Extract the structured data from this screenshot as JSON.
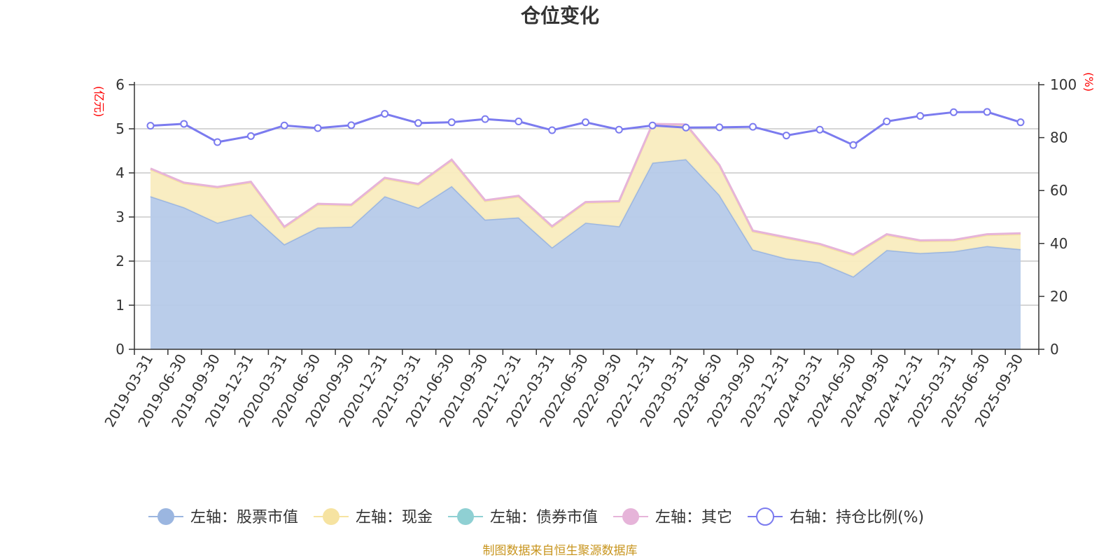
{
  "chart_data": {
    "type": "area",
    "title": "仓位变化",
    "left_axis": {
      "unit": "(亿元)",
      "ylim": [
        0,
        6
      ],
      "ticks": [
        "0",
        "1",
        "2",
        "3",
        "4",
        "5",
        "6"
      ]
    },
    "right_axis": {
      "unit": "(%)",
      "ylim": [
        0,
        100
      ],
      "ticks": [
        "0",
        "20",
        "40",
        "60",
        "80",
        "100"
      ]
    },
    "x": [
      "2019-03-31",
      "2019-06-30",
      "2019-09-30",
      "2019-12-31",
      "2020-03-31",
      "2020-06-30",
      "2020-09-30",
      "2020-12-31",
      "2021-03-31",
      "2021-06-30",
      "2021-09-30",
      "2021-12-31",
      "2022-03-31",
      "2022-06-30",
      "2022-09-30",
      "2022-12-31",
      "2023-03-31",
      "2023-06-30",
      "2023-09-30",
      "2023-12-31",
      "2024-03-31",
      "2024-06-30",
      "2024-09-30",
      "2024-12-31",
      "2025-03-31",
      "2025-06-30",
      "2025-09-30"
    ],
    "grid": true,
    "legend_position": "bottom",
    "series": [
      {
        "name": "左轴：股票市值",
        "axis": "left",
        "color": "#9bb6e0",
        "fill": "#b6cae9",
        "values": [
          3.47,
          3.22,
          2.87,
          3.06,
          2.38,
          2.76,
          2.78,
          3.47,
          3.21,
          3.7,
          2.94,
          2.99,
          2.31,
          2.87,
          2.79,
          4.23,
          4.31,
          3.5,
          2.26,
          2.06,
          1.97,
          1.65,
          2.25,
          2.18,
          2.22,
          2.34,
          2.27
        ]
      },
      {
        "name": "左轴：现金",
        "axis": "left",
        "color": "#f6e3a1",
        "fill": "#f9ecbf",
        "values": [
          0.61,
          0.54,
          0.79,
          0.72,
          0.38,
          0.52,
          0.48,
          0.4,
          0.52,
          0.58,
          0.42,
          0.47,
          0.46,
          0.45,
          0.55,
          0.86,
          0.77,
          0.66,
          0.41,
          0.46,
          0.4,
          0.48,
          0.34,
          0.27,
          0.24,
          0.25,
          0.34
        ]
      },
      {
        "name": "左轴：债券市值",
        "axis": "left",
        "color": "#8fd0d3",
        "fill": "#b9e2e4",
        "values": [
          0,
          0,
          0,
          0,
          0,
          0,
          0,
          0,
          0,
          0,
          0,
          0,
          0,
          0,
          0,
          0,
          0,
          0,
          0,
          0,
          0,
          0,
          0,
          0,
          0,
          0,
          0
        ]
      },
      {
        "name": "左轴：其它",
        "axis": "left",
        "color": "#e6b4d9",
        "fill": "#efcfe6",
        "values": [
          0.02,
          0.02,
          0.02,
          0.02,
          0.02,
          0.02,
          0.02,
          0.02,
          0.02,
          0.02,
          0.02,
          0.02,
          0.02,
          0.02,
          0.02,
          0.02,
          0.02,
          0.02,
          0.02,
          0.02,
          0.02,
          0.02,
          0.02,
          0.02,
          0.02,
          0.02,
          0.02
        ]
      },
      {
        "name": "右轴：持仓比例(%)",
        "axis": "right",
        "color": "#7b7bef",
        "values": [
          84.5,
          85.2,
          78.3,
          80.6,
          84.6,
          83.6,
          84.7,
          89.0,
          85.5,
          85.8,
          87.0,
          86.1,
          82.8,
          85.8,
          83.0,
          84.6,
          83.8,
          83.9,
          84.1,
          80.8,
          83.0,
          77.2,
          86.1,
          88.2,
          89.6,
          89.7,
          85.8
        ]
      }
    ]
  },
  "footer": {
    "source": "制图数据来自恒生聚源数据库"
  }
}
